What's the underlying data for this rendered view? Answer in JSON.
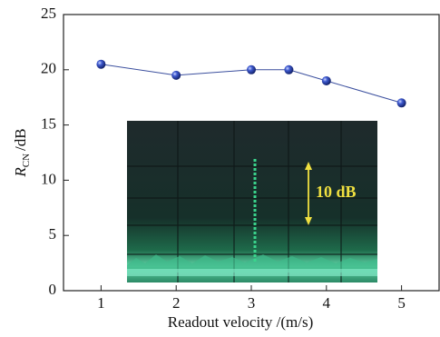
{
  "chart_data": {
    "type": "line",
    "x": [
      1,
      2,
      3,
      3.5,
      4,
      5
    ],
    "series": [
      {
        "color": "#3b4f9e",
        "values": [
          20.5,
          19.5,
          20,
          20,
          19,
          17
        ]
      }
    ],
    "xlim": [
      0.5,
      5.5
    ],
    "xticks": [
      1,
      2,
      3,
      4,
      5
    ],
    "ylim": [
      0,
      25
    ],
    "yticks": [
      0,
      5,
      10,
      15,
      20,
      25
    ],
    "xlabel": "Readout velocity /(m/s)",
    "ylabel": {
      "symbol": "R",
      "subscript": "CN",
      "unit": "/dB"
    },
    "inset_annotation": "10 dB"
  }
}
